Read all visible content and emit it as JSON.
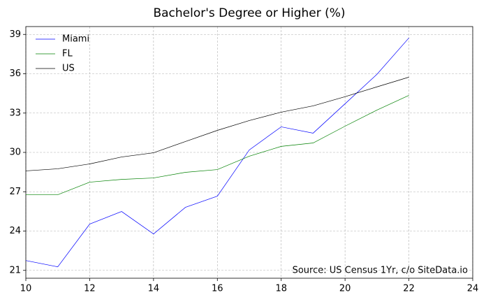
{
  "chart_data": {
    "type": "line",
    "title": "Bachelor's Degree or Higher (%)",
    "annotation": "Source: US Census 1Yr, c/o SiteData.io",
    "x": [
      10,
      11,
      12,
      13,
      14,
      15,
      16,
      17,
      18,
      19,
      20,
      21,
      22
    ],
    "series": [
      {
        "name": "Miami",
        "color": "#0000ff",
        "values": [
          21.75,
          21.27,
          24.53,
          25.49,
          23.78,
          25.81,
          26.66,
          30.19,
          31.95,
          31.47,
          33.71,
          35.96,
          38.73
        ]
      },
      {
        "name": "FL",
        "color": "#008000",
        "values": [
          26.77,
          26.77,
          27.73,
          27.94,
          28.05,
          28.48,
          28.69,
          29.71,
          30.46,
          30.72,
          32.0,
          33.23,
          34.35
        ]
      },
      {
        "name": "US",
        "color": "#000000",
        "values": [
          28.59,
          28.75,
          29.12,
          29.65,
          29.97,
          30.83,
          31.68,
          32.43,
          33.07,
          33.55,
          34.25,
          35.0,
          35.74
        ]
      }
    ],
    "xlim": [
      10,
      24
    ],
    "xticks": [
      10,
      12,
      14,
      16,
      18,
      20,
      22,
      24
    ],
    "ylim": [
      20.4,
      39.6
    ],
    "yticks": [
      21,
      24,
      27,
      30,
      33,
      36,
      39
    ],
    "grid": true,
    "legend": "upper-left"
  }
}
